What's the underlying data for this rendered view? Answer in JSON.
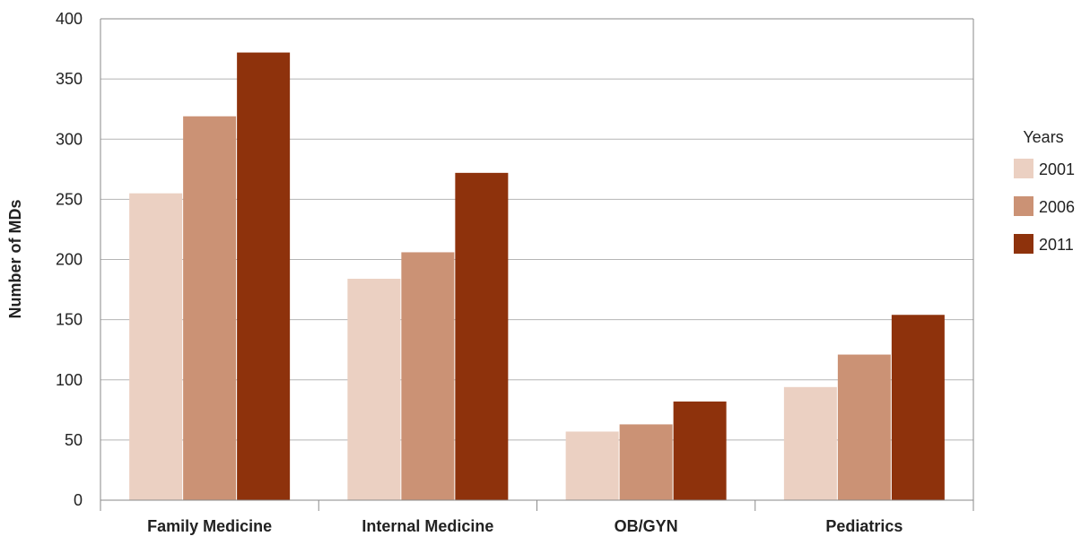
{
  "chart_data": {
    "type": "bar",
    "title": "",
    "xlabel": "",
    "ylabel": "Number of MDs",
    "ylim": [
      0,
      400
    ],
    "yticks": [
      0,
      50,
      100,
      150,
      200,
      250,
      300,
      350,
      400
    ],
    "grid": true,
    "legend": {
      "title": "Years",
      "placement": "right"
    },
    "categories": [
      "Family Medicine",
      "Internal Medicine",
      "OB/GYN",
      "Pediatrics"
    ],
    "series": [
      {
        "name": "2001",
        "color": "#EBD0C2",
        "values": [
          255,
          184,
          57,
          94
        ]
      },
      {
        "name": "2006",
        "color": "#CB9275",
        "values": [
          319,
          206,
          63,
          121
        ]
      },
      {
        "name": "2011",
        "color": "#8E320C",
        "values": [
          372,
          272,
          82,
          154
        ]
      }
    ]
  }
}
